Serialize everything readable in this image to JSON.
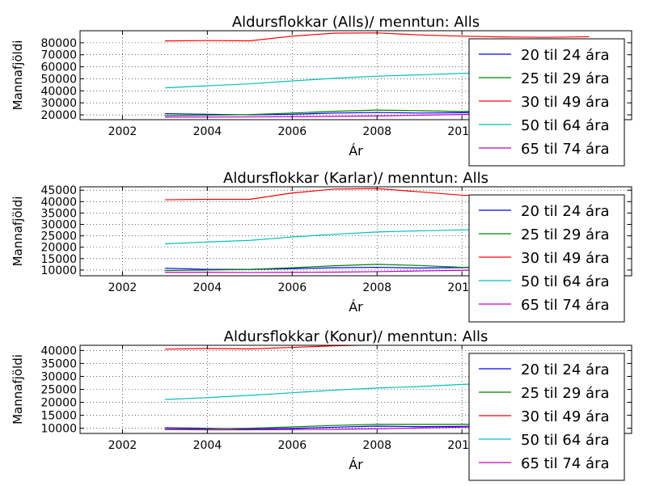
{
  "colors": {
    "20 til 24 ára": "#0000ff",
    "25 til 29 ára": "#008000",
    "30 til 49 ára": "#ff0000",
    "50 til 64 ára": "#00bfbf",
    "65 til 74 ára": "#bf00bf"
  },
  "chart_data": [
    {
      "type": "line",
      "title": "Aldursflokkar (Alls)/ menntun: Alls",
      "xlabel": "Ár",
      "ylabel": "Mannafjöldi",
      "xlim": [
        2001,
        2014
      ],
      "ylim": [
        16000,
        90000
      ],
      "xticks": [
        2002,
        2004,
        2006,
        2008,
        2010
      ],
      "xtick_labels": [
        "2002",
        "2004",
        "2006",
        "2008",
        "2010"
      ],
      "yticks": [
        20000,
        30000,
        40000,
        50000,
        60000,
        70000,
        80000
      ],
      "ytick_labels": [
        "20000",
        "30000",
        "40000",
        "50000",
        "60000",
        "70000",
        "80000"
      ],
      "grid": true,
      "legend": "upper right",
      "x": [
        2003,
        2004,
        2005,
        2006,
        2007,
        2008,
        2009,
        2010,
        2011,
        2012,
        2013
      ],
      "series": [
        {
          "name": "20 til 24 ára",
          "values": [
            21000,
            20500,
            20000,
            20500,
            21500,
            22000,
            21500,
            21800,
            22500,
            22000,
            21800
          ]
        },
        {
          "name": "25 til 29 ára",
          "values": [
            19500,
            19800,
            20200,
            21500,
            23000,
            24000,
            23500,
            22800,
            23200,
            23500,
            23800
          ]
        },
        {
          "name": "30 til 49 ára",
          "values": [
            81500,
            81800,
            81600,
            85500,
            88000,
            88200,
            86500,
            85500,
            84800,
            84500,
            85000
          ]
        },
        {
          "name": "50 til 64 ára",
          "values": [
            42500,
            44200,
            45800,
            48200,
            50500,
            52200,
            53300,
            54500,
            55000,
            55600,
            56200
          ]
        },
        {
          "name": "65 til 74 ára",
          "values": [
            18200,
            18200,
            18300,
            18500,
            18800,
            19100,
            19700,
            20300,
            21000,
            21800,
            22500
          ]
        }
      ]
    },
    {
      "type": "line",
      "title": "Aldursflokkar (Karlar)/ menntun: Alls",
      "xlabel": "Ár",
      "ylabel": "Mannafjöldi",
      "xlim": [
        2001,
        2014
      ],
      "ylim": [
        7500,
        46500
      ],
      "xticks": [
        2002,
        2004,
        2006,
        2008,
        2010
      ],
      "xtick_labels": [
        "2002",
        "2004",
        "2006",
        "2008",
        "2010"
      ],
      "yticks": [
        10000,
        15000,
        20000,
        25000,
        30000,
        35000,
        40000,
        45000
      ],
      "ytick_labels": [
        "10000",
        "15000",
        "20000",
        "25000",
        "30000",
        "35000",
        "40000",
        "45000"
      ],
      "grid": true,
      "legend": "upper right",
      "x": [
        2003,
        2004,
        2005,
        2006,
        2007,
        2008,
        2009,
        2010,
        2011,
        2012,
        2013
      ],
      "series": [
        {
          "name": "20 til 24 ára",
          "values": [
            10800,
            10300,
            10300,
            10600,
            11000,
            11200,
            10900,
            11100,
            11400,
            11300,
            11200
          ]
        },
        {
          "name": "25 til 29 ára",
          "values": [
            9800,
            10000,
            10300,
            11000,
            11900,
            12500,
            12000,
            11200,
            11500,
            11700,
            11800
          ]
        },
        {
          "name": "30 til 49 ára",
          "values": [
            40800,
            41000,
            41000,
            43800,
            45500,
            45700,
            44300,
            42800,
            42500,
            42300,
            42500
          ]
        },
        {
          "name": "50 til 64 ára",
          "values": [
            21500,
            22300,
            23000,
            24500,
            25700,
            26700,
            27200,
            27600,
            27900,
            28100,
            28300
          ]
        },
        {
          "name": "65 til 74 ára",
          "values": [
            9000,
            9000,
            8900,
            9000,
            9100,
            9300,
            9600,
            9900,
            10300,
            10700,
            11000
          ]
        }
      ]
    },
    {
      "type": "line",
      "title": "Aldursflokkar (Konur)/ menntun: Alls",
      "xlabel": "Ár",
      "ylabel": "Mannafjöldi",
      "xlim": [
        2001,
        2014
      ],
      "ylim": [
        8000,
        42000
      ],
      "xticks": [
        2002,
        2004,
        2006,
        2008,
        2010
      ],
      "xtick_labels": [
        "2002",
        "2004",
        "2006",
        "2008",
        "2010"
      ],
      "yticks": [
        10000,
        15000,
        20000,
        25000,
        30000,
        35000,
        40000
      ],
      "ytick_labels": [
        "10000",
        "15000",
        "20000",
        "25000",
        "30000",
        "35000",
        "40000"
      ],
      "grid": true,
      "legend": "upper right",
      "x": [
        2003,
        2004,
        2005,
        2006,
        2007,
        2008,
        2009,
        2010,
        2011,
        2012,
        2013
      ],
      "series": [
        {
          "name": "20 til 24 ára",
          "values": [
            10200,
            10000,
            9700,
            9900,
            10400,
            10800,
            10600,
            10700,
            11000,
            10900,
            10800
          ]
        },
        {
          "name": "25 til 29 ára",
          "values": [
            9700,
            9800,
            10000,
            10500,
            11100,
            11500,
            11500,
            11500,
            11700,
            11800,
            12000
          ]
        },
        {
          "name": "30 til 49 ára",
          "values": [
            40500,
            40800,
            40600,
            41200,
            41800,
            42200,
            42300,
            42500,
            42400,
            42200,
            42400
          ]
        },
        {
          "name": "50 til 64 ára",
          "values": [
            21100,
            21800,
            22700,
            23700,
            24700,
            25500,
            26100,
            26900,
            27400,
            27800,
            28200
          ]
        },
        {
          "name": "65 til 74 ára",
          "values": [
            9500,
            9400,
            9400,
            9500,
            9600,
            9800,
            10100,
            10400,
            10700,
            11100,
            11500
          ]
        }
      ]
    }
  ]
}
